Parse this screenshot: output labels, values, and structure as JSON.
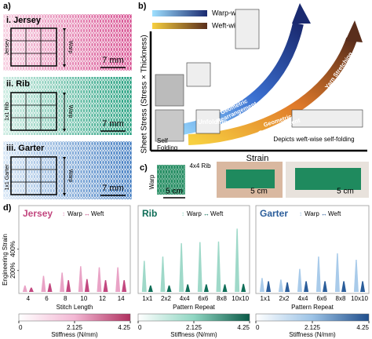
{
  "panel_a": {
    "label": "a)",
    "swatches": [
      {
        "title": "i. Jersey",
        "side_label": "Jersey",
        "direction": "Warp",
        "scale": "7 mm"
      },
      {
        "title": "ii. Rib",
        "side_label": "1x1 Rib",
        "direction": "Warp",
        "scale": "7 mm"
      },
      {
        "title": "iii. Garter",
        "side_label": "1x1 Garter",
        "direction": "Warp",
        "scale": "7 mm"
      }
    ]
  },
  "panel_b": {
    "label": "b)",
    "legend": [
      "Warp-wise",
      "Weft-wise"
    ],
    "y_label": "Sheet Stress (Stress × Thickness)",
    "x_label": "Strain",
    "yarn_stretching": [
      "Yarn Stretching",
      "Yarn Stretching"
    ],
    "geometric_rearrangement": [
      [
        "Geometric",
        "Rearrangement"
      ],
      [
        "Geometric",
        "Rearrangement"
      ]
    ],
    "unfolding": "Unfolding",
    "self_folding": [
      "Self",
      "Folding"
    ],
    "caption": "Depicts weft-wise self-folding"
  },
  "panel_c": {
    "label": "c)",
    "sample": "4x4 Rib",
    "direction": "Warp",
    "scales": [
      "5 cm",
      "5 cm",
      "5 cm"
    ]
  },
  "panel_d_label": "d)",
  "chart_data": [
    {
      "type": "bar",
      "title": "Jersey",
      "title_color": "#c2477f",
      "categories": [
        "4",
        "6",
        "8",
        "10",
        "12",
        "14"
      ],
      "x_label": "Stitch Length",
      "y_label": "Engineering Strain",
      "ylim": [
        0,
        600
      ],
      "yticks": [
        {
          "value": 200,
          "label": "200%"
        },
        {
          "value": 400,
          "label": "400%"
        }
      ],
      "series": [
        {
          "name": "Warp",
          "color": "#e9a3c6",
          "values": [
            60,
            150,
            180,
            240,
            230,
            230
          ]
        },
        {
          "name": "Weft",
          "color": "#c2477f",
          "values": [
            40,
            80,
            110,
            120,
            110,
            110
          ]
        }
      ],
      "colorbar": {
        "colors": [
          "#ffffff",
          "#f3b8d4",
          "#b0305f"
        ],
        "lim": [
          0,
          4.25
        ],
        "ticks": [
          0,
          2.125,
          4.25
        ],
        "label": "Stiffness (N/mm)"
      }
    },
    {
      "type": "bar",
      "title": "Rib",
      "title_color": "#0f6e58",
      "categories": [
        "1x1",
        "2x2",
        "4x4",
        "6x6",
        "8x8",
        "10x10"
      ],
      "x_label": "Pattern Repeat",
      "ylim": [
        0,
        600
      ],
      "series": [
        {
          "name": "Warp",
          "color": "#9fd9c9",
          "values": [
            290,
            330,
            455,
            465,
            470,
            590
          ]
        },
        {
          "name": "Weft",
          "color": "#0f6e58",
          "values": [
            60,
            60,
            70,
            70,
            70,
            75
          ]
        }
      ],
      "colorbar": {
        "colors": [
          "#ffffff",
          "#8fd6c2",
          "#0a5a47"
        ],
        "lim": [
          0,
          4.25
        ],
        "ticks": [
          0,
          2.125,
          4.25
        ],
        "label": "Stiffness (N/mm)"
      }
    },
    {
      "type": "bar",
      "title": "Garter",
      "title_color": "#2a5d9a",
      "categories": [
        "1x1",
        "2x2",
        "4x4",
        "6x6",
        "8x8",
        "10x10"
      ],
      "x_label": "Pattern Repeat",
      "ylim": [
        0,
        600
      ],
      "series": [
        {
          "name": "Warp",
          "color": "#a9cbea",
          "values": [
            130,
            115,
            215,
            330,
            360,
            300
          ]
        },
        {
          "name": "Weft",
          "color": "#2a5d9a",
          "values": [
            100,
            90,
            100,
            100,
            100,
            100
          ]
        }
      ],
      "colorbar": {
        "colors": [
          "#ffffff",
          "#9cc3e6",
          "#1f4e8c"
        ],
        "lim": [
          0,
          4.25
        ],
        "ticks": [
          0,
          2.125,
          4.25
        ],
        "label": "Stiffness (N/mm)"
      }
    }
  ]
}
